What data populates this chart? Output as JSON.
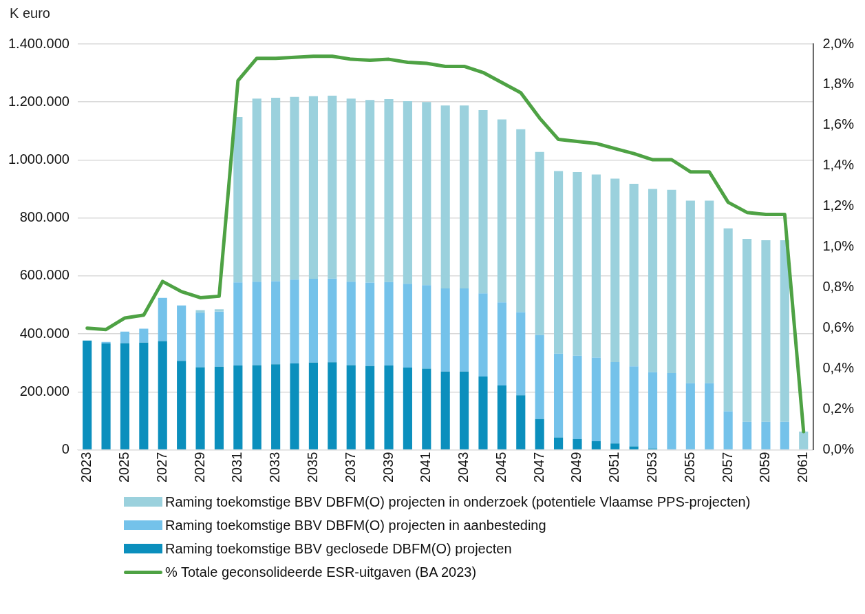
{
  "chart_data": {
    "type": "bar",
    "stacked": true,
    "ylabel": "K euro",
    "legend": "bottom",
    "grid": "y",
    "categories": [
      "2023",
      null,
      "2025",
      null,
      "2027",
      null,
      "2029",
      null,
      "2031",
      null,
      "2033",
      null,
      "2035",
      null,
      "2037",
      null,
      "2039",
      null,
      "2041",
      null,
      "2043",
      null,
      "2045",
      null,
      "2047",
      null,
      "2049",
      null,
      "2051",
      null,
      "2053",
      null,
      "2055",
      null,
      "2057",
      null,
      "2059",
      null,
      "2061"
    ],
    "series": [
      {
        "name": "Raming toekomstige BBV geclosede DBFM(O) projecten",
        "color": "#0b8fbd",
        "values": [
          377000,
          367000,
          368000,
          370000,
          375000,
          307000,
          285000,
          287000,
          291000,
          292000,
          295000,
          298000,
          301000,
          302000,
          292000,
          289000,
          291000,
          284000,
          280000,
          270000,
          270000,
          253000,
          222000,
          188000,
          106000,
          43000,
          37000,
          30000,
          22000,
          12000,
          5000,
          2000,
          0,
          0,
          0,
          0,
          0,
          0,
          0
        ]
      },
      {
        "name": "Raming toekomstige BBV DBFM(O) projecten in aanbesteding",
        "color": "#74c2ea",
        "values": [
          0,
          5000,
          40000,
          48000,
          149000,
          191000,
          188000,
          190000,
          287000,
          288000,
          287000,
          289000,
          289000,
          289000,
          288000,
          288000,
          288000,
          289000,
          288000,
          287000,
          287000,
          287000,
          287000,
          287000,
          290000,
          289000,
          288000,
          288000,
          281000,
          276000,
          263000,
          263000,
          230000,
          230000,
          133000,
          97000,
          97000,
          97000,
          0
        ]
      },
      {
        "name": "Raming toekomstige BBV DBFM(O) projecten in onderzoek (potentiele Vlaamse PPS-projecten)",
        "color": "#9bd1dd",
        "values": [
          0,
          0,
          0,
          0,
          0,
          0,
          9000,
          8000,
          570000,
          632000,
          633000,
          631000,
          630000,
          631000,
          632000,
          630000,
          631000,
          630000,
          632000,
          631000,
          631000,
          632000,
          631000,
          631000,
          632000,
          630000,
          633000,
          632000,
          633000,
          630000,
          632000,
          632000,
          630000,
          630000,
          631000,
          631000,
          626000,
          626000,
          63000
        ]
      },
      {
        "name": "% Totale geconsolideerde ESR-uitgaven (BA 2023)",
        "type": "line",
        "axis": "y2",
        "color": "#4ea244",
        "marker": "none",
        "line_style": "solid",
        "values": [
          0.6,
          0.593,
          0.65,
          0.664,
          0.83,
          0.78,
          0.75,
          0.757,
          1.82,
          1.93,
          1.93,
          1.935,
          1.94,
          1.94,
          1.925,
          1.92,
          1.925,
          1.91,
          1.905,
          1.89,
          1.89,
          1.86,
          1.81,
          1.76,
          1.635,
          1.53,
          1.52,
          1.51,
          1.485,
          1.46,
          1.43,
          1.43,
          1.37,
          1.37,
          1.22,
          1.17,
          1.16,
          1.16,
          0.09
        ]
      }
    ],
    "ylim": [
      0,
      1400000
    ],
    "yticks": [
      {
        "value": 0,
        "label": "0"
      },
      {
        "value": 200000,
        "label": "200.000"
      },
      {
        "value": 400000,
        "label": "400.000"
      },
      {
        "value": 600000,
        "label": "600.000"
      },
      {
        "value": 800000,
        "label": "800.000"
      },
      {
        "value": 1000000,
        "label": "1.000.000"
      },
      {
        "value": 1200000,
        "label": "1.200.000"
      },
      {
        "value": 1400000,
        "label": "1.400.000"
      }
    ],
    "y2lim": [
      0,
      2
    ],
    "y2ticks": [
      {
        "value": 0,
        "label": "0,0%"
      },
      {
        "value": 0.2,
        "label": "0,2%"
      },
      {
        "value": 0.4,
        "label": "0,4%"
      },
      {
        "value": 0.6,
        "label": "0,6%"
      },
      {
        "value": 0.8,
        "label": "0,8%"
      },
      {
        "value": 1.0,
        "label": "1,0%"
      },
      {
        "value": 1.2,
        "label": "1,2%"
      },
      {
        "value": 1.4,
        "label": "1,4%"
      },
      {
        "value": 1.6,
        "label": "1,6%"
      },
      {
        "value": 1.8,
        "label": "1,8%"
      },
      {
        "value": 2.0,
        "label": "2,0%"
      }
    ]
  }
}
